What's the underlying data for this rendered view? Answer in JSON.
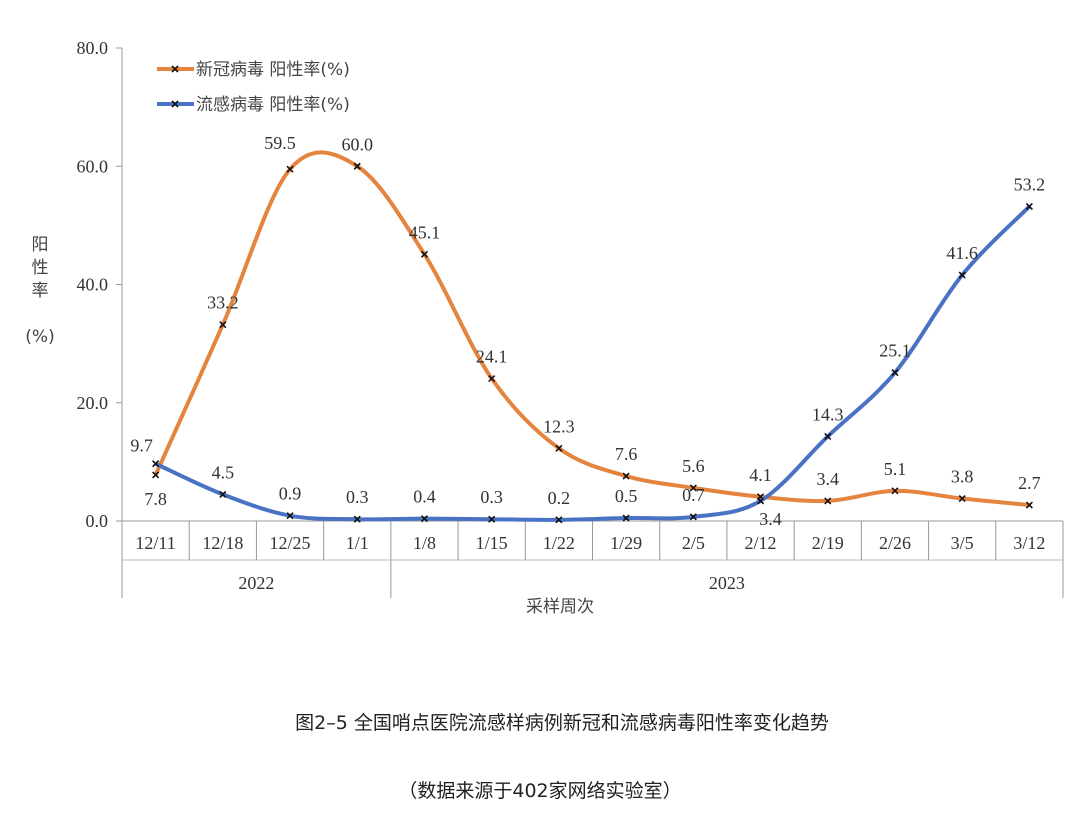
{
  "chart_data": {
    "type": "line",
    "categories": [
      "12/11",
      "12/18",
      "12/25",
      "1/1",
      "1/8",
      "1/15",
      "1/22",
      "1/29",
      "2/5",
      "2/12",
      "2/19",
      "2/26",
      "3/5",
      "3/12"
    ],
    "category_groups": [
      {
        "label": "2022",
        "count": 4
      },
      {
        "label": "2023",
        "count": 10
      }
    ],
    "series": [
      {
        "name": "新冠病毒 阳性率(%)",
        "color": "#E5843F",
        "values": [
          7.8,
          33.2,
          59.5,
          60.0,
          45.1,
          24.1,
          12.3,
          7.6,
          5.6,
          4.1,
          3.4,
          5.1,
          3.8,
          2.7
        ]
      },
      {
        "name": "流感病毒 阳性率(%)",
        "color": "#4A72C4",
        "values": [
          9.7,
          4.5,
          0.9,
          0.3,
          0.4,
          0.3,
          0.2,
          0.5,
          0.7,
          3.4,
          14.3,
          25.1,
          41.6,
          53.2
        ]
      }
    ],
    "smooth": true,
    "ylim": [
      0,
      80
    ],
    "yticks": [
      "0.0",
      "20.0",
      "40.0",
      "60.0",
      "80.0"
    ],
    "ylabel": "阳性率(%)",
    "xlabel": "采样周次",
    "legend": "top-left",
    "grid": false
  },
  "caption": {
    "title": "图2–5 全国哨点医院流感样病例新冠和流感病毒阳性率变化趋势",
    "source": "（数据来源于402家网络实验室）"
  }
}
